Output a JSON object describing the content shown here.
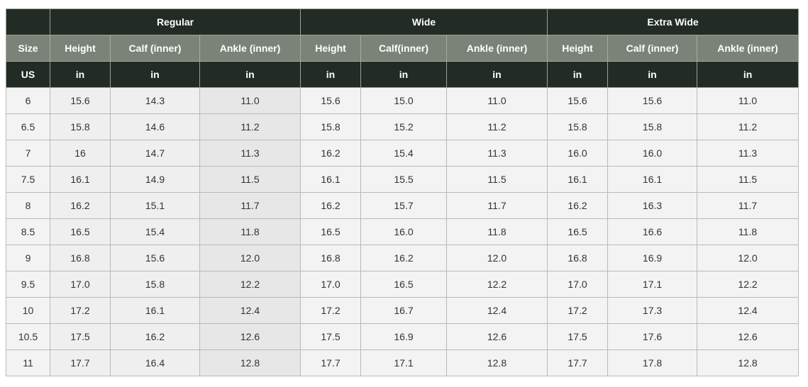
{
  "groups": [
    "",
    "Regular",
    "Wide",
    "Extra Wide"
  ],
  "columns": [
    "Size",
    "Height",
    "Calf (inner)",
    "Ankle (inner)",
    "Height",
    "Calf(inner)",
    "Ankle (inner)",
    "Height",
    "Calf (inner)",
    "Ankle (inner)"
  ],
  "units": [
    "US",
    "in",
    "in",
    "in",
    "in",
    "in",
    "in",
    "in",
    "in",
    "in"
  ],
  "rows": [
    [
      "6",
      "15.6",
      "14.3",
      "11.0",
      "15.6",
      "15.0",
      "11.0",
      "15.6",
      "15.6",
      "11.0"
    ],
    [
      "6.5",
      "15.8",
      "14.6",
      "11.2",
      "15.8",
      "15.2",
      "11.2",
      "15.8",
      "15.8",
      "11.2"
    ],
    [
      "7",
      "16",
      "14.7",
      "11.3",
      "16.2",
      "15.4",
      "11.3",
      "16.0",
      "16.0",
      "11.3"
    ],
    [
      "7.5",
      "16.1",
      "14.9",
      "11.5",
      "16.1",
      "15.5",
      "11.5",
      "16.1",
      "16.1",
      "11.5"
    ],
    [
      "8",
      "16.2",
      "15.1",
      "11.7",
      "16.2",
      "15.7",
      "11.7",
      "16.2",
      "16.3",
      "11.7"
    ],
    [
      "8.5",
      "16.5",
      "15.4",
      "11.8",
      "16.5",
      "16.0",
      "11.8",
      "16.5",
      "16.6",
      "11.8"
    ],
    [
      "9",
      "16.8",
      "15.6",
      "12.0",
      "16.8",
      "16.2",
      "12.0",
      "16.8",
      "16.9",
      "12.0"
    ],
    [
      "9.5",
      "17.0",
      "15.8",
      "12.2",
      "17.0",
      "16.5",
      "12.2",
      "17.0",
      "17.1",
      "12.2"
    ],
    [
      "10",
      "17.2",
      "16.1",
      "12.4",
      "17.2",
      "16.7",
      "12.4",
      "17.2",
      "17.3",
      "12.4"
    ],
    [
      "10.5",
      "17.5",
      "16.2",
      "12.6",
      "17.5",
      "16.9",
      "12.6",
      "17.5",
      "17.6",
      "12.6"
    ],
    [
      "11",
      "17.7",
      "16.4",
      "12.8",
      "17.7",
      "17.1",
      "12.8",
      "17.7",
      "17.8",
      "12.8"
    ]
  ]
}
